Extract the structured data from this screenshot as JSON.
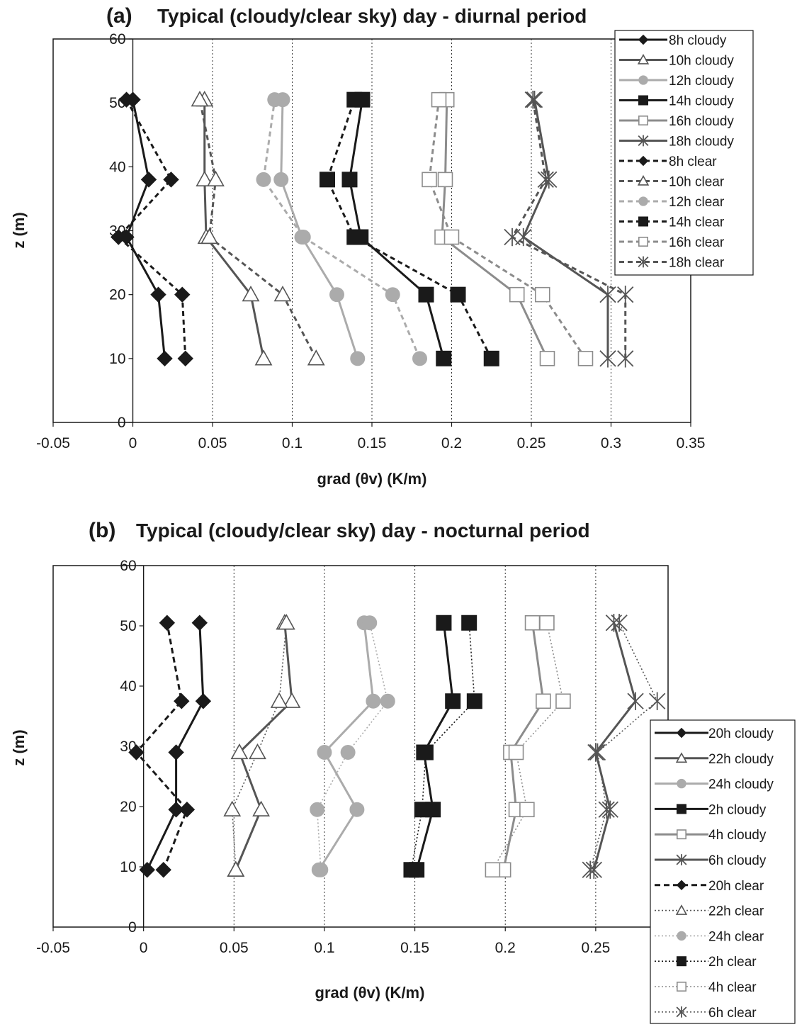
{
  "colors": {
    "black": "#1a1a1a",
    "dark_grey": "#555555",
    "light_grey": "#ababab",
    "mid_grey": "#8c8c8c",
    "grid": "#333333"
  },
  "chart_data": [
    {
      "type": "line",
      "panel_letter": "(a)",
      "title": "Typical (cloudy/clear sky) day - diurnal period",
      "xlabel": "grad (θv) (K/m)",
      "ylabel": "z (m)",
      "xlim": [
        -0.05,
        0.35
      ],
      "ylim": [
        0,
        60
      ],
      "xticks": [
        "-0.05",
        "0",
        "0.05",
        "0.1",
        "0.15",
        "0.2",
        "0.25",
        "0.3",
        "0.35"
      ],
      "xtick_values": [
        -0.05,
        0,
        0.05,
        0.1,
        0.15,
        0.2,
        0.25,
        0.3,
        0.35
      ],
      "yticks": [
        "0",
        "10",
        "20",
        "30",
        "40",
        "50",
        "60"
      ],
      "ytick_values": [
        0,
        10,
        20,
        30,
        40,
        50,
        60
      ],
      "grid": "vertical dotted lines at x ticks",
      "legend_position": "top-right",
      "z": [
        10,
        20,
        29,
        38,
        50.5
      ],
      "series": [
        {
          "name": "8h cloudy",
          "values": [
            0.02,
            0.016,
            -0.004,
            0.01,
            0.0
          ],
          "color": "#1a1a1a",
          "marker": "diamond",
          "style": "solid"
        },
        {
          "name": "10h cloudy",
          "values": [
            0.082,
            0.074,
            0.046,
            0.045,
            0.045
          ],
          "color": "#555555",
          "marker": "triangle-open",
          "style": "solid"
        },
        {
          "name": "12h cloudy",
          "values": [
            0.141,
            0.128,
            0.106,
            0.093,
            0.094
          ],
          "color": "#ababab",
          "marker": "circle",
          "style": "solid"
        },
        {
          "name": "14h cloudy",
          "values": [
            0.195,
            0.184,
            0.143,
            0.136,
            0.144
          ],
          "color": "#1a1a1a",
          "marker": "square",
          "style": "solid"
        },
        {
          "name": "16h cloudy",
          "values": [
            0.26,
            0.241,
            0.194,
            0.196,
            0.197
          ],
          "color": "#8c8c8c",
          "marker": "square-open",
          "style": "solid"
        },
        {
          "name": "18h cloudy",
          "values": [
            0.298,
            0.298,
            0.245,
            0.261,
            0.252
          ],
          "color": "#555555",
          "marker": "star",
          "style": "solid"
        },
        {
          "name": "8h clear",
          "values": [
            0.033,
            0.031,
            -0.009,
            0.024,
            -0.004
          ],
          "color": "#1a1a1a",
          "marker": "diamond",
          "style": "dashed"
        },
        {
          "name": "10h clear",
          "values": [
            0.115,
            0.094,
            0.048,
            0.052,
            0.042
          ],
          "color": "#555555",
          "marker": "triangle-open",
          "style": "dashed"
        },
        {
          "name": "12h clear",
          "values": [
            0.18,
            0.163,
            0.107,
            0.082,
            0.089
          ],
          "color": "#ababab",
          "marker": "circle",
          "style": "dashed"
        },
        {
          "name": "14h clear",
          "values": [
            0.225,
            0.204,
            0.139,
            0.122,
            0.139
          ],
          "color": "#1a1a1a",
          "marker": "square",
          "style": "dashed"
        },
        {
          "name": "16h clear",
          "values": [
            0.284,
            0.257,
            0.2,
            0.186,
            0.192
          ],
          "color": "#8c8c8c",
          "marker": "square-open",
          "style": "dashed"
        },
        {
          "name": "18h clear",
          "values": [
            0.309,
            0.309,
            0.238,
            0.259,
            0.251
          ],
          "color": "#555555",
          "marker": "star",
          "style": "dashed"
        }
      ]
    },
    {
      "type": "line",
      "panel_letter": "(b)",
      "title": "Typical (cloudy/clear sky) day - nocturnal period",
      "xlabel": "grad (θv) (K/m)",
      "ylabel": "z (m)",
      "xlim": [
        -0.05,
        0.29
      ],
      "ylim": [
        0,
        60
      ],
      "xticks": [
        "-0.05",
        "0",
        "0.05",
        "0.1",
        "0.15",
        "0.2",
        "0.25"
      ],
      "xtick_values": [
        -0.05,
        0,
        0.05,
        0.1,
        0.15,
        0.2,
        0.25
      ],
      "yticks": [
        "0",
        "10",
        "20",
        "30",
        "40",
        "50",
        "60"
      ],
      "ytick_values": [
        0,
        10,
        20,
        30,
        40,
        50,
        60
      ],
      "grid": "vertical dotted lines at x ticks",
      "legend_position": "right, outside plot",
      "z": [
        9.5,
        19.5,
        29,
        37.5,
        50.5
      ],
      "series": [
        {
          "name": "20h cloudy",
          "values": [
            0.002,
            0.018,
            0.018,
            0.033,
            0.031
          ],
          "color": "#1a1a1a",
          "marker": "diamond",
          "style": "solid"
        },
        {
          "name": "22h cloudy",
          "values": [
            0.051,
            0.065,
            0.053,
            0.082,
            0.078
          ],
          "color": "#555555",
          "marker": "triangle-open",
          "style": "solid"
        },
        {
          "name": "24h cloudy",
          "values": [
            0.097,
            0.118,
            0.1,
            0.127,
            0.122
          ],
          "color": "#ababab",
          "marker": "circle",
          "style": "solid"
        },
        {
          "name": "2h cloudy",
          "values": [
            0.151,
            0.16,
            0.155,
            0.171,
            0.166
          ],
          "color": "#1a1a1a",
          "marker": "square",
          "style": "solid"
        },
        {
          "name": "4h cloudy",
          "values": [
            0.199,
            0.206,
            0.203,
            0.221,
            0.215
          ],
          "color": "#8c8c8c",
          "marker": "square-open",
          "style": "solid"
        },
        {
          "name": "6h cloudy",
          "values": [
            0.249,
            0.258,
            0.25,
            0.272,
            0.26
          ],
          "color": "#555555",
          "marker": "star",
          "style": "solid"
        },
        {
          "name": "20h clear",
          "values": [
            0.011,
            0.024,
            -0.004,
            0.021,
            0.013
          ],
          "color": "#1a1a1a",
          "marker": "diamond",
          "style": "dashed-bold"
        },
        {
          "name": "22h clear",
          "values": [
            0.051,
            0.049,
            0.063,
            0.075,
            0.079
          ],
          "color": "#555555",
          "marker": "triangle-open",
          "style": "dotted"
        },
        {
          "name": "24h clear",
          "values": [
            0.098,
            0.096,
            0.113,
            0.135,
            0.125
          ],
          "color": "#ababab",
          "marker": "circle",
          "style": "dotted"
        },
        {
          "name": "2h clear",
          "values": [
            0.148,
            0.154,
            0.156,
            0.183,
            0.18
          ],
          "color": "#1a1a1a",
          "marker": "square",
          "style": "dotted"
        },
        {
          "name": "4h clear",
          "values": [
            0.193,
            0.212,
            0.206,
            0.232,
            0.223
          ],
          "color": "#8c8c8c",
          "marker": "square-open",
          "style": "dotted"
        },
        {
          "name": "6h clear",
          "values": [
            0.247,
            0.256,
            0.251,
            0.284,
            0.263
          ],
          "color": "#555555",
          "marker": "star",
          "style": "dotted"
        }
      ]
    }
  ]
}
